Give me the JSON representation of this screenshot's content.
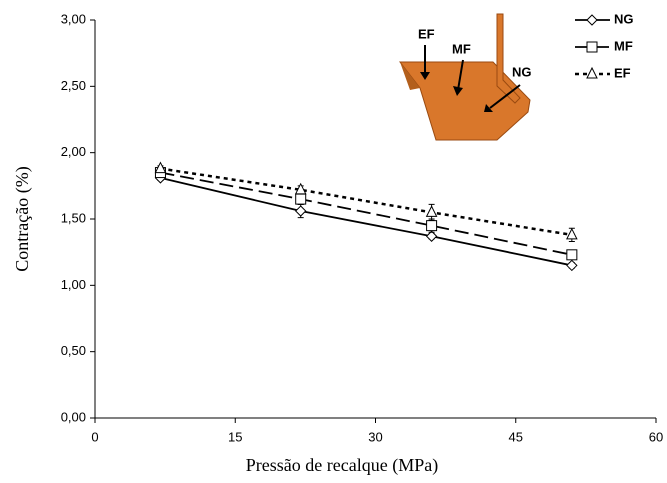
{
  "chart_data": {
    "type": "line",
    "xlabel": "Pressão de recalque (MPa)",
    "ylabel": "Contração (%)",
    "annotations": [
      "EF",
      "MF",
      "NG"
    ],
    "x": [
      7,
      22,
      36,
      51
    ],
    "series": [
      {
        "name": "NG",
        "color": "#000000",
        "linestyle": "solid",
        "marker": "diamond",
        "values": [
          1.81,
          1.56,
          1.37,
          1.15
        ],
        "errors": [
          0.02,
          0.05,
          0.02,
          0.02
        ]
      },
      {
        "name": "MF",
        "color": "#000000",
        "linestyle": "dashed",
        "marker": "square",
        "values": [
          1.85,
          1.65,
          1.45,
          1.23
        ],
        "errors": [
          0.03,
          0.04,
          0.05,
          0.03
        ]
      },
      {
        "name": "EF",
        "color": "#000000",
        "linestyle": "dotted",
        "marker": "triangle",
        "values": [
          1.88,
          1.72,
          1.55,
          1.38
        ],
        "errors": [
          0.02,
          0.03,
          0.06,
          0.05
        ]
      }
    ],
    "xlim": [
      0,
      60
    ],
    "xticks": [
      0,
      15,
      30,
      45,
      60
    ],
    "ylim": [
      0,
      3
    ],
    "yticks": [
      {
        "value": 0,
        "label": "0,00"
      },
      {
        "value": 0.5,
        "label": "0,50"
      },
      {
        "value": 1,
        "label": "1,00"
      },
      {
        "value": 1.5,
        "label": "1,50"
      },
      {
        "value": 2,
        "label": "2,00"
      },
      {
        "value": 2.5,
        "label": "2,50"
      },
      {
        "value": 3,
        "label": "3,00"
      }
    ],
    "legend": "upper right",
    "grid": false
  }
}
